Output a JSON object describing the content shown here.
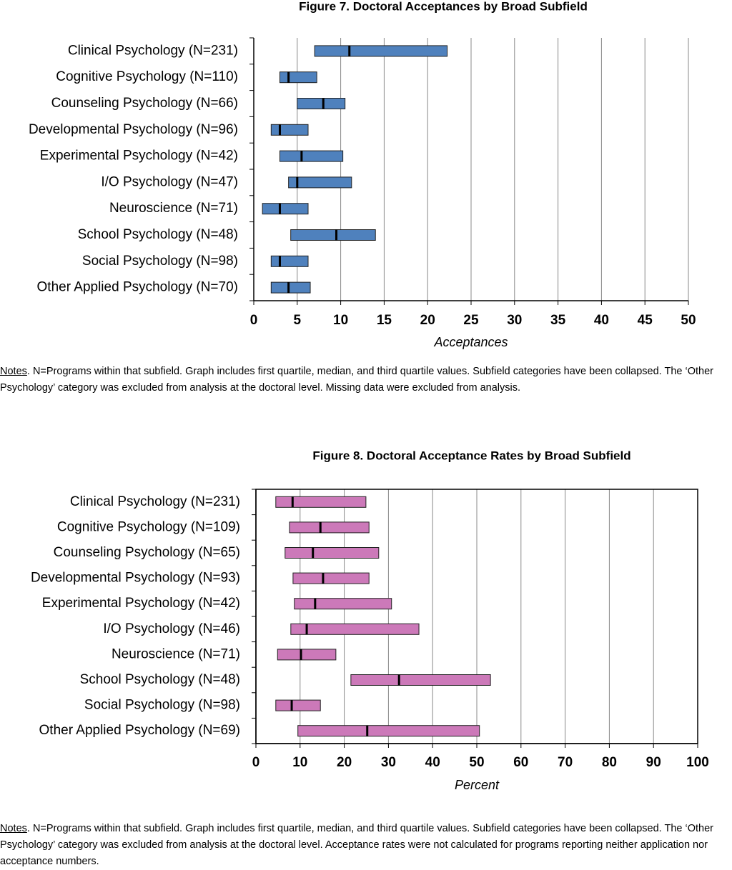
{
  "chart_data": [
    {
      "type": "range",
      "title": "Figure 7. Doctoral Acceptances by Broad Subfield",
      "x_label": "Acceptances",
      "categories": [
        "Clinical Psychology (N=231)",
        "Cognitive Psychology (N=110)",
        "Counseling Psychology (N=66)",
        "Developmental Psychology (N=96)",
        "Experimental Psychology (N=42)",
        "I/O Psychology (N=47)",
        "Neuroscience (N=71)",
        "School Psychology (N=48)",
        "Social Psychology (N=98)",
        "Other Applied Psychology (N=70)"
      ],
      "q1": [
        7,
        3,
        5,
        2,
        3,
        4,
        1,
        4.25,
        2,
        2
      ],
      "median": [
        11,
        4,
        8,
        3,
        5.5,
        5,
        3,
        9.5,
        3,
        4
      ],
      "q3": [
        22.25,
        7.25,
        10.5,
        6.25,
        10.25,
        11.25,
        6.25,
        14,
        6.25,
        6.5
      ],
      "color": "#4f81bd",
      "xlim": [
        0,
        50
      ],
      "xticks": [
        0,
        5,
        10,
        15,
        20,
        25,
        30,
        35,
        40,
        45,
        50
      ],
      "grid": true,
      "frame": false,
      "notes_label": "Notes",
      "notes": ". N=Programs within that subfield.  Graph includes first quartile, median, and third quartile values. Subfield categories have been collapsed. The ‘Other Psychology’ category was excluded from analysis at the doctoral level. Missing data were excluded from analysis."
    },
    {
      "type": "range",
      "title": "Figure 8. Doctoral Acceptance Rates by Broad Subfield",
      "x_label": "Percent",
      "categories": [
        "Clinical Psychology (N=231)",
        "Cognitive Psychology (N=109)",
        "Counseling Psychology (N=65)",
        "Developmental Psychology (N=93)",
        "Experimental Psychology (N=42)",
        "I/O Psychology (N=46)",
        "Neuroscience (N=71)",
        "School Psychology (N=48)",
        "Social Psychology (N=98)",
        "Other Applied Psychology (N=69)"
      ],
      "q1": [
        4.5,
        7.6,
        6.6,
        8.4,
        8.7,
        7.9,
        4.9,
        21.5,
        4.5,
        9.5
      ],
      "median": [
        8.3,
        14.6,
        12.9,
        15.2,
        13.4,
        11.5,
        10.2,
        32.4,
        8.1,
        25.2
      ],
      "q3": [
        24.9,
        25.6,
        27.8,
        25.6,
        30.7,
        36.9,
        18.1,
        53.1,
        14.6,
        50.6
      ],
      "color": "#cc79b9",
      "xlim": [
        0,
        100
      ],
      "xticks": [
        0,
        10,
        20,
        30,
        40,
        50,
        60,
        70,
        80,
        90,
        100
      ],
      "grid": true,
      "frame": true,
      "notes_label": "Notes",
      "notes": ". N=Programs within that subfield.  Graph includes first quartile, median, and third quartile values. Subfield categories have been collapsed. The ‘Other Psychology’ category was excluded from analysis at the doctoral level. Acceptance rates were not calculated for programs reporting neither application nor acceptance numbers."
    }
  ]
}
